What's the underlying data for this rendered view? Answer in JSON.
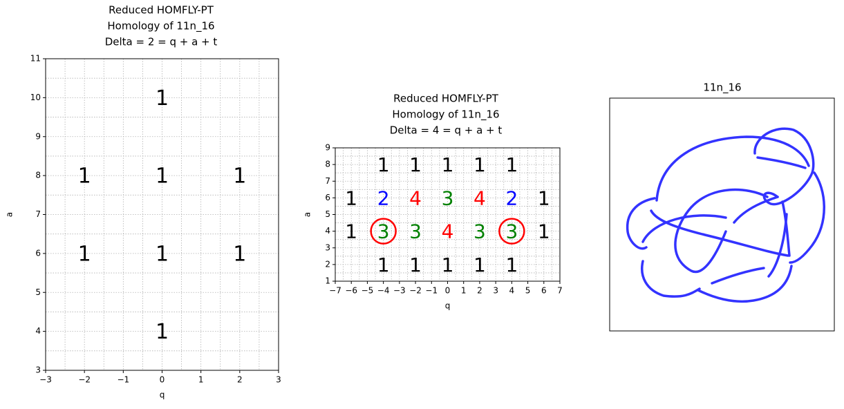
{
  "chart_data": [
    {
      "type": "text-grid",
      "title": [
        "Reduced HOMFLY-PT",
        "Homology of 11n_16",
        "Delta = 2 = q + a + t"
      ],
      "xlabel": "q",
      "ylabel": "a",
      "xlim": [
        -3,
        3
      ],
      "ylim": [
        3,
        11
      ],
      "xticks": [
        {
          "value": -3,
          "label": "−3"
        },
        {
          "value": -2,
          "label": "−2"
        },
        {
          "value": -1,
          "label": "−1"
        },
        0,
        1,
        2,
        3
      ],
      "yticks": [
        3,
        4,
        5,
        6,
        7,
        8,
        9,
        10,
        11
      ],
      "minor_xticks": [
        -2.5,
        -1.5,
        -0.5,
        0.5,
        1.5,
        2.5
      ],
      "minor_yticks": [
        3.5,
        4.5,
        5.5,
        6.5,
        7.5,
        8.5,
        9.5,
        10.5
      ],
      "grid": true,
      "series": [
        {
          "color": "#000000",
          "x": [
            0,
            -2,
            0,
            2,
            -2,
            0,
            2,
            0
          ],
          "y": [
            10,
            8,
            8,
            8,
            6,
            6,
            6,
            4
          ],
          "ranks": [
            1,
            1,
            1,
            1,
            1,
            1,
            1,
            1
          ]
        }
      ]
    },
    {
      "type": "text-grid",
      "title": [
        "Reduced HOMFLY-PT",
        "Homology of 11n_16",
        "Delta = 4 = q + a + t"
      ],
      "xlabel": "q",
      "ylabel": "a",
      "xlim": [
        -7,
        7
      ],
      "ylim": [
        1,
        9
      ],
      "xticks": [
        {
          "value": -7,
          "label": "−7"
        },
        {
          "value": -6,
          "label": "−6"
        },
        {
          "value": -5,
          "label": "−5"
        },
        {
          "value": -4,
          "label": "−4"
        },
        {
          "value": -3,
          "label": "−3"
        },
        {
          "value": -2,
          "label": "−2"
        },
        {
          "value": -1,
          "label": "−1"
        },
        0,
        1,
        2,
        3,
        4,
        5,
        6,
        7
      ],
      "yticks": [
        1,
        2,
        3,
        4,
        5,
        6,
        7,
        8,
        9
      ],
      "minor_xticks": [
        -6.5,
        -5.5,
        -4.5,
        -3.5,
        -2.5,
        -1.5,
        -0.5,
        0.5,
        1.5,
        2.5,
        3.5,
        4.5,
        5.5,
        6.5
      ],
      "minor_yticks": [
        1.5,
        2.5,
        3.5,
        4.5,
        5.5,
        6.5,
        7.5,
        8.5
      ],
      "grid": true,
      "series": [
        {
          "color": "#000000",
          "x": [
            -4,
            -2,
            0,
            2,
            4,
            -6,
            6,
            -6,
            6,
            -4,
            -2,
            0,
            2,
            4
          ],
          "y": [
            8,
            8,
            8,
            8,
            8,
            6,
            6,
            4,
            4,
            2,
            2,
            2,
            2,
            2
          ],
          "ranks": [
            1,
            1,
            1,
            1,
            1,
            1,
            1,
            1,
            1,
            1,
            1,
            1,
            1,
            1
          ]
        },
        {
          "color": "#0000ff",
          "x": [
            -4,
            4
          ],
          "y": [
            6,
            6
          ],
          "ranks": [
            2,
            2
          ]
        },
        {
          "color": "#ff0000",
          "x": [
            -2,
            2,
            0
          ],
          "y": [
            6,
            6,
            4
          ],
          "ranks": [
            4,
            4,
            4
          ]
        },
        {
          "color": "#008000",
          "x": [
            0,
            -4,
            -2,
            2,
            4
          ],
          "y": [
            6,
            4,
            4,
            4,
            4
          ],
          "ranks": [
            3,
            3,
            3,
            3,
            3
          ]
        }
      ],
      "highlight": {
        "color": "#ff0000",
        "x": [
          -4,
          4
        ],
        "y": [
          4,
          4
        ]
      }
    },
    {
      "type": "knot",
      "title": "11n_16",
      "color": "#3333ff"
    }
  ]
}
